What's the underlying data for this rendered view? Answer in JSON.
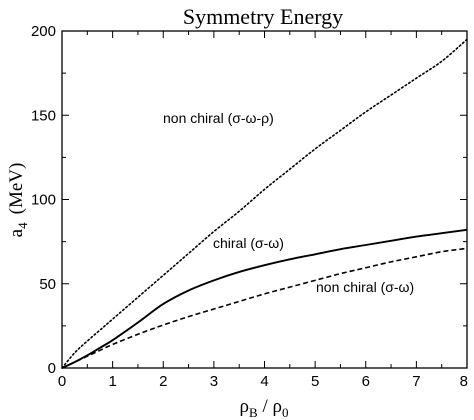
{
  "chart_data": {
    "type": "line",
    "title": "Symmetry Energy",
    "xlabel": {
      "main": "ρ",
      "main_sub": "B",
      "sep": " / ",
      "den": "ρ",
      "den_sub": "0"
    },
    "ylabel": {
      "main": "a",
      "sub": "4",
      "unit": "(MeV)"
    },
    "xlim": [
      0,
      8
    ],
    "ylim": [
      0,
      200
    ],
    "xticks": [
      "0",
      "1",
      "2",
      "3",
      "4",
      "5",
      "6",
      "7",
      "8"
    ],
    "yticks": [
      "0",
      "50",
      "100",
      "150",
      "200"
    ],
    "grid": false,
    "legend": "none",
    "annotations": [
      "non chiral (σ-ω-ρ)",
      "chiral (σ-ω)",
      "non chiral (σ-ω)"
    ],
    "x": [
      0,
      0.25,
      0.5,
      0.75,
      1,
      1.5,
      2,
      2.5,
      3,
      3.5,
      4,
      4.5,
      5,
      5.5,
      6,
      6.5,
      7,
      7.5,
      8
    ],
    "series": [
      {
        "style": "dotted",
        "values": [
          0,
          9,
          16,
          22.5,
          29,
          42,
          55,
          68,
          81,
          93,
          106,
          118,
          130,
          141,
          152,
          162,
          172,
          182,
          195
        ]
      },
      {
        "style": "solid",
        "values": [
          0,
          3.5,
          7.5,
          12,
          16.5,
          27,
          38,
          46,
          52,
          57,
          61,
          64.5,
          67.5,
          70.5,
          73,
          75.5,
          78,
          80,
          82
        ]
      },
      {
        "style": "dashed",
        "values": [
          0,
          3.5,
          7,
          10.5,
          14,
          20,
          25.5,
          30.5,
          35,
          39.5,
          44,
          48,
          52,
          56,
          59.5,
          63,
          66,
          69,
          71
        ]
      }
    ]
  }
}
